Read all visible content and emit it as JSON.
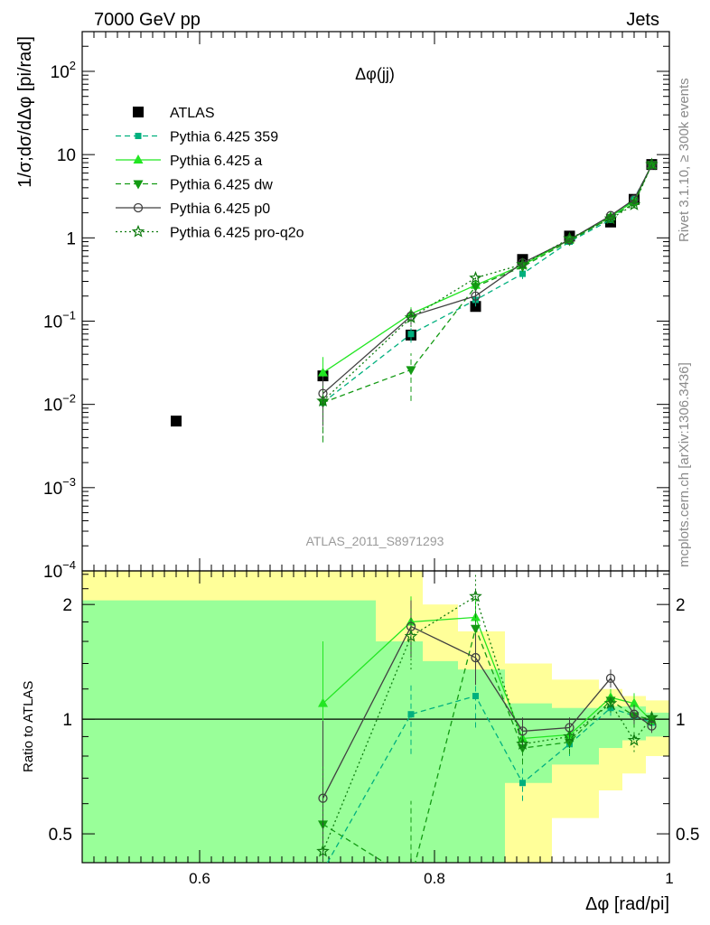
{
  "header": {
    "left": "7000 GeV pp",
    "right": "Jets"
  },
  "main_title": "Δφ(jj)",
  "analysis_label": "ATLAS_2011_S8971293",
  "side_labels": {
    "rivet": "Rivet 3.1.10, ≥ 300k events",
    "source": "mcplots.cern.ch [arXiv:1306.3436]"
  },
  "axes": {
    "ylabel_top": "1/σ;dσ/dΔφ [pi/rad]",
    "ylabel_ratio": "Ratio to ATLAS",
    "xlabel": "Δφ [rad/pi]",
    "x_ticks": [
      "0.6",
      "0.8",
      "1"
    ],
    "y_ticks_top": [
      {
        "base": "10",
        "exp": "2"
      },
      {
        "base": "10",
        "exp": ""
      },
      {
        "base": "1",
        "exp": ""
      },
      {
        "base": "10",
        "exp": "−1"
      },
      {
        "base": "10",
        "exp": "−2"
      },
      {
        "base": "10",
        "exp": "−3"
      },
      {
        "base": "10",
        "exp": "−4"
      }
    ],
    "y_ticks_ratio": [
      "2",
      "1",
      "0.5"
    ]
  },
  "colors": {
    "data": "#000000",
    "p359": "#00b07e",
    "a": "#22e622",
    "dw": "#139a13",
    "p0": "#404040",
    "proq2o": "#107c10",
    "band_inner": "#99ff99",
    "band_outer": "#ffff99"
  },
  "chart_data": [
    {
      "type": "scatter",
      "title": "Δφ(jj)",
      "xlabel": "Δφ [rad/pi]",
      "ylabel": "1/σ;dσ/dΔφ [pi/rad]",
      "xlim": [
        0.5,
        1.0
      ],
      "ylim": [
        0.0001,
        300
      ],
      "yscale": "log",
      "x": [
        0.58,
        0.705,
        0.78,
        0.835,
        0.875,
        0.915,
        0.95,
        0.97,
        0.985
      ],
      "series": [
        {
          "name": "ATLAS",
          "style": "markers",
          "marker": "square",
          "x": [
            0.58,
            0.705,
            0.78,
            0.835,
            0.875,
            0.915,
            0.95,
            0.97,
            0.985
          ],
          "values": [
            0.0063,
            0.022,
            0.068,
            0.15,
            0.55,
            1.05,
            1.55,
            2.9,
            7.6
          ]
        },
        {
          "name": "Pythia 6.425 359",
          "style": "dashed",
          "marker": "square-small",
          "x": [
            0.705,
            0.78,
            0.835,
            0.875,
            0.915,
            0.95,
            0.97,
            0.985
          ],
          "values": [
            0.0105,
            0.07,
            0.18,
            0.37,
            0.9,
            1.65,
            2.95,
            7.4
          ],
          "err": [
            0.007,
            0.015,
            0.03,
            0.05,
            0.06,
            0.1,
            0.2,
            0.3
          ]
        },
        {
          "name": "Pythia 6.425 a",
          "style": "solid",
          "marker": "triangle-up",
          "x": [
            0.705,
            0.78,
            0.835,
            0.875,
            0.915,
            0.95,
            0.97,
            0.985
          ],
          "values": [
            0.024,
            0.122,
            0.27,
            0.47,
            0.95,
            1.8,
            2.75,
            7.5
          ],
          "err": [
            0.013,
            0.025,
            0.04,
            0.05,
            0.06,
            0.1,
            0.2,
            0.3
          ]
        },
        {
          "name": "Pythia 6.425 dw",
          "style": "dashed",
          "marker": "triangle-down",
          "x": [
            0.705,
            0.78,
            0.835,
            0.875,
            0.915,
            0.95,
            0.97,
            0.985
          ],
          "values": [
            0.0105,
            0.026,
            0.26,
            0.45,
            0.92,
            1.75,
            2.6,
            7.6
          ],
          "err": [
            0.007,
            0.015,
            0.04,
            0.05,
            0.06,
            0.1,
            0.2,
            0.3
          ]
        },
        {
          "name": "Pythia 6.425 p0",
          "style": "solid",
          "marker": "circle-open",
          "x": [
            0.705,
            0.78,
            0.835,
            0.875,
            0.915,
            0.95,
            0.97,
            0.985
          ],
          "values": [
            0.0135,
            0.115,
            0.2,
            0.5,
            0.95,
            1.85,
            2.9,
            7.5
          ],
          "err": [
            0.008,
            0.025,
            0.035,
            0.05,
            0.06,
            0.1,
            0.2,
            0.3
          ]
        },
        {
          "name": "Pythia 6.425 pro-q2o",
          "style": "dotted",
          "marker": "star-open",
          "x": [
            0.705,
            0.78,
            0.835,
            0.875,
            0.915,
            0.95,
            0.97,
            0.985
          ],
          "values": [
            0.011,
            0.11,
            0.33,
            0.48,
            0.98,
            1.7,
            2.5,
            7.6
          ],
          "err": [
            0.007,
            0.025,
            0.05,
            0.05,
            0.06,
            0.1,
            0.2,
            0.3
          ]
        }
      ]
    },
    {
      "type": "line",
      "title": "",
      "xlabel": "Δφ [rad/pi]",
      "ylabel": "Ratio to ATLAS",
      "xlim": [
        0.5,
        1.0
      ],
      "ylim": [
        0.42,
        2.45
      ],
      "yscale": "log",
      "reference_line": 1,
      "bands": {
        "edges": [
          0.5,
          0.66,
          0.75,
          0.79,
          0.82,
          0.86,
          0.9,
          0.94,
          0.96,
          0.98,
          1.0
        ],
        "inner_low": [
          0.0,
          0.0,
          0.0,
          0.35,
          0.4,
          0.68,
          0.76,
          0.84,
          0.88,
          0.9,
          0.92
        ],
        "inner_high": [
          2.05,
          2.05,
          1.6,
          1.42,
          1.35,
          1.1,
          1.07,
          1.08,
          1.08,
          1.04,
          1.04
        ],
        "outer_low": [
          0.0,
          0.0,
          0.0,
          0.0,
          0.0,
          0.0,
          0.55,
          0.65,
          0.72,
          0.8,
          0.84
        ],
        "outer_high": [
          3.0,
          2.6,
          2.6,
          2.0,
          1.7,
          1.4,
          1.27,
          1.2,
          1.15,
          1.12,
          1.1
        ]
      },
      "x": [
        0.705,
        0.78,
        0.835,
        0.875,
        0.915,
        0.95,
        0.97,
        0.985
      ],
      "series": [
        {
          "name": "Pythia 6.425 359",
          "values": [
            0.4,
            1.03,
            1.15,
            0.68,
            0.86,
            1.07,
            1.02,
            0.98
          ],
          "err": [
            0.25,
            0.22,
            0.2,
            0.07,
            0.06,
            0.05,
            0.06,
            0.04
          ]
        },
        {
          "name": "Pythia 6.425 a",
          "values": [
            1.1,
            1.8,
            1.85,
            0.89,
            0.91,
            1.14,
            1.1,
            0.99
          ],
          "err": [
            0.5,
            0.3,
            0.25,
            0.08,
            0.06,
            0.06,
            0.07,
            0.04
          ]
        },
        {
          "name": "Pythia 6.425 dw",
          "values": [
            0.53,
            0.38,
            1.73,
            0.84,
            0.87,
            1.12,
            1.02,
            1.0
          ],
          "err": [
            0.33,
            0.23,
            0.25,
            0.08,
            0.06,
            0.06,
            0.07,
            0.04
          ]
        },
        {
          "name": "Pythia 6.425 p0",
          "values": [
            0.62,
            1.75,
            1.45,
            0.93,
            0.95,
            1.28,
            1.03,
            0.96
          ],
          "err": [
            0.37,
            0.3,
            0.22,
            0.08,
            0.06,
            0.07,
            0.06,
            0.04
          ]
        },
        {
          "name": "Pythia 6.425 pro-q2o",
          "values": [
            0.45,
            1.65,
            2.1,
            0.86,
            0.9,
            1.1,
            0.88,
            1.01
          ],
          "err": [
            0.3,
            0.3,
            0.3,
            0.08,
            0.06,
            0.06,
            0.06,
            0.04
          ]
        }
      ]
    }
  ]
}
